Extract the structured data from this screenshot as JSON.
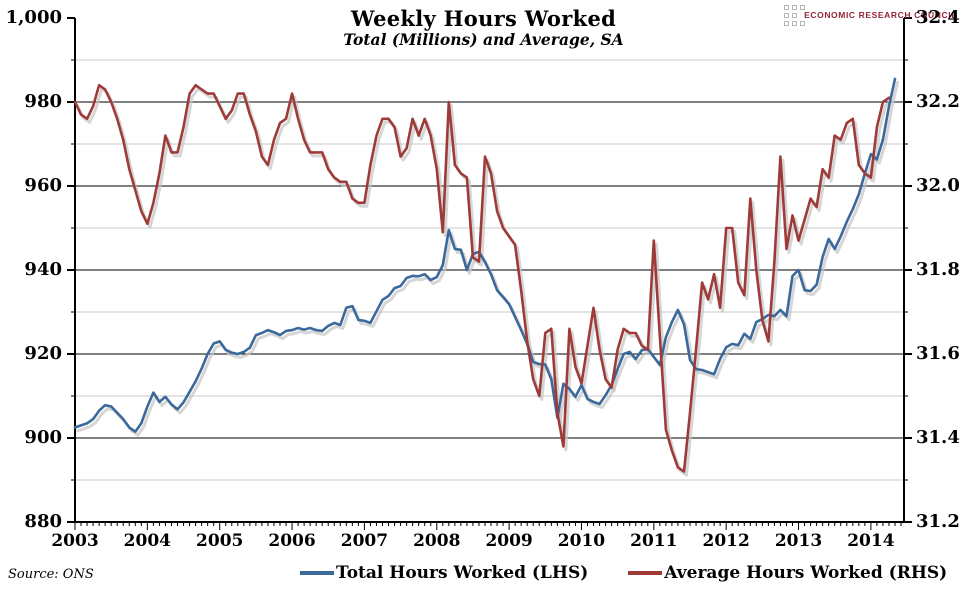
{
  "header": {
    "title": "Weekly Hours Worked",
    "subtitle": "Total (Millions) and Average, SA",
    "logo_text": "ECONOMIC RESEARCH COUNCIL"
  },
  "footer": {
    "source_note": "Source: ONS"
  },
  "colors": {
    "total_line": "#3C699B",
    "average_line": "#9E3B39",
    "shadow": "#c4c4c4",
    "major_grid": "#000000",
    "minor_grid": "#c8c8c8",
    "logo_text": "#932438"
  },
  "chart_data": {
    "type": "line",
    "title": "Weekly Hours Worked",
    "subtitle": "Total (Millions) and Average, SA",
    "x_unit": "monthly",
    "x_start": "2003-01",
    "x_end": "2014-05",
    "x_tick_labels": [
      "2003",
      "2004",
      "2005",
      "2006",
      "2007",
      "2008",
      "2009",
      "2010",
      "2011",
      "2012",
      "2013",
      "2014"
    ],
    "left_axis": {
      "min": 880,
      "max": 1000,
      "major_step": 20,
      "minor_step": 10,
      "tick_labels": [
        "1,000",
        "980",
        "960",
        "940",
        "920",
        "900",
        "880"
      ]
    },
    "right_axis": {
      "min": 31.2,
      "max": 32.4,
      "major_step": 0.2,
      "minor_step": 0.1,
      "tick_labels": [
        "32.4",
        "32.2",
        "32.0",
        "31.8",
        "31.6",
        "31.4",
        "31.2"
      ]
    },
    "grid": {
      "major": true,
      "minor": true
    },
    "legend_position": "bottom",
    "series": [
      {
        "name": "Total Hours Worked (LHS)",
        "axis": "left",
        "values": [
          902.5,
          903,
          903.5,
          904.5,
          906.5,
          907.8,
          907.5,
          906,
          904.5,
          902.5,
          901.5,
          903.5,
          907.5,
          910.8,
          908.6,
          909.8,
          908,
          906.8,
          908.5,
          911,
          913.5,
          916.5,
          920,
          922.5,
          923,
          921,
          920.3,
          920,
          920.5,
          921.5,
          924.5,
          925,
          925.7,
          925.2,
          924.5,
          925.5,
          925.7,
          926.2,
          925.8,
          926.2,
          925.7,
          925.5,
          926.7,
          927.4,
          926.9,
          931,
          931.4,
          928.1,
          927.9,
          927.4,
          930.2,
          932.9,
          933.8,
          935.7,
          936.2,
          938.1,
          938.6,
          938.5,
          939,
          937.6,
          938.3,
          941.2,
          949.5,
          945,
          944.8,
          940,
          943.8,
          944.3,
          941.9,
          939,
          935.2,
          933.6,
          931.9,
          928.8,
          925.7,
          922.4,
          918.1,
          917.6,
          917.5,
          914,
          904.8,
          912.9,
          911.7,
          909.8,
          912.6,
          909.3,
          908.6,
          908.1,
          910.2,
          912.6,
          916.4,
          920,
          920.5,
          918.8,
          920.9,
          921.2,
          919.3,
          917.4,
          924,
          927.6,
          930.5,
          927.1,
          918.6,
          916.4,
          916.2,
          915.7,
          915.2,
          918.8,
          921.6,
          922.4,
          922.1,
          924.8,
          923.6,
          927.6,
          928.3,
          929.3,
          929,
          930.5,
          929,
          938.6,
          940,
          935.2,
          935,
          936.5,
          943.1,
          947.4,
          945,
          948,
          951.5,
          954.5,
          958,
          963,
          967.6,
          966.3,
          971,
          979,
          985.5
        ]
      },
      {
        "name": "Average Hours Worked (RHS)",
        "axis": "right",
        "values": [
          32.2,
          32.17,
          32.16,
          32.19,
          32.24,
          32.23,
          32.2,
          32.16,
          32.11,
          32.04,
          31.99,
          31.94,
          31.91,
          31.96,
          32.03,
          32.12,
          32.08,
          32.08,
          32.14,
          32.22,
          32.24,
          32.23,
          32.22,
          32.22,
          32.19,
          32.16,
          32.18,
          32.22,
          32.22,
          32.17,
          32.13,
          32.07,
          32.05,
          32.11,
          32.15,
          32.16,
          32.22,
          32.16,
          32.11,
          32.08,
          32.08,
          32.08,
          32.04,
          32.02,
          32.01,
          32.01,
          31.97,
          31.96,
          31.96,
          32.05,
          32.12,
          32.16,
          32.16,
          32.14,
          32.07,
          32.09,
          32.16,
          32.12,
          32.16,
          32.12,
          32.04,
          31.89,
          32.2,
          32.05,
          32.03,
          32.02,
          31.83,
          31.82,
          32.07,
          32.03,
          31.94,
          31.9,
          31.88,
          31.86,
          31.75,
          31.63,
          31.54,
          31.5,
          31.65,
          31.66,
          31.46,
          31.38,
          31.66,
          31.57,
          31.53,
          31.62,
          31.71,
          31.61,
          31.54,
          31.52,
          31.61,
          31.66,
          31.65,
          31.65,
          31.62,
          31.61,
          31.87,
          31.64,
          31.42,
          31.37,
          31.33,
          31.32,
          31.46,
          31.61,
          31.77,
          31.73,
          31.79,
          31.71,
          31.9,
          31.9,
          31.77,
          31.74,
          31.97,
          31.8,
          31.68,
          31.63,
          31.82,
          32.07,
          31.85,
          31.93,
          31.87,
          31.92,
          31.97,
          31.95,
          32.04,
          32.02,
          32.12,
          32.11,
          32.15,
          32.16,
          32.05,
          32.03,
          32.02,
          32.14,
          32.2,
          32.21,
          null
        ]
      }
    ],
    "source_note": "Source: ONS"
  }
}
